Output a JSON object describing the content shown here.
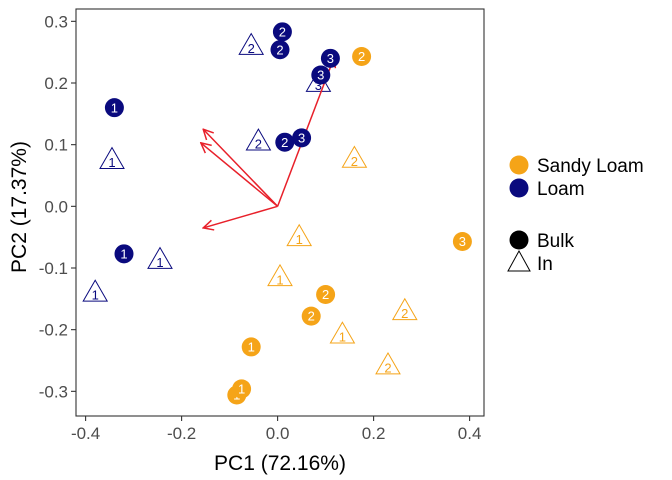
{
  "chart_data": {
    "type": "scatter",
    "xlabel": "PC1 (72.16%)",
    "ylabel": "PC2 (17.37%)",
    "xlim": [
      -0.42,
      0.43
    ],
    "ylim": [
      -0.34,
      0.32
    ],
    "x_ticks": [
      -0.4,
      -0.2,
      0.0,
      0.2,
      0.4
    ],
    "x_tick_labels": [
      "-0.4",
      "-0.2",
      "0.0",
      "0.2",
      "0.4"
    ],
    "y_ticks": [
      -0.3,
      -0.2,
      -0.1,
      0.0,
      0.1,
      0.2,
      0.3
    ],
    "y_tick_labels": [
      "-0.3",
      "-0.2",
      "-0.1",
      "0.0",
      "0.1",
      "0.2",
      "0.3"
    ],
    "grid": false,
    "colors": {
      "Sandy Loam": "#F5A418",
      "Loam": "#0A0A7E",
      "arrows": "#E8202A"
    },
    "legend": {
      "placement": "right",
      "color_entries": [
        {
          "label": "Sandy Loam",
          "color": "#F5A418"
        },
        {
          "label": "Loam",
          "color": "#0A0A7E"
        }
      ],
      "shape_entries": [
        {
          "label": "Bulk",
          "shape": "circle"
        },
        {
          "label": "In",
          "shape": "triangle"
        }
      ]
    },
    "points": [
      {
        "x": -0.34,
        "y": 0.16,
        "soil": "Loam",
        "type": "Bulk",
        "label": "1"
      },
      {
        "x": -0.32,
        "y": -0.077,
        "soil": "Loam",
        "type": "Bulk",
        "label": "1"
      },
      {
        "x": 0.01,
        "y": 0.283,
        "soil": "Loam",
        "type": "Bulk",
        "label": "2"
      },
      {
        "x": 0.005,
        "y": 0.254,
        "soil": "Loam",
        "type": "Bulk",
        "label": "2"
      },
      {
        "x": 0.015,
        "y": 0.104,
        "soil": "Loam",
        "type": "Bulk",
        "label": "2"
      },
      {
        "x": 0.11,
        "y": 0.24,
        "soil": "Loam",
        "type": "Bulk",
        "label": "3"
      },
      {
        "x": 0.09,
        "y": 0.213,
        "soil": "Loam",
        "type": "Bulk",
        "label": "3"
      },
      {
        "x": 0.05,
        "y": 0.111,
        "soil": "Loam",
        "type": "Bulk",
        "label": "3"
      },
      {
        "x": -0.345,
        "y": 0.075,
        "soil": "Loam",
        "type": "In",
        "label": "1"
      },
      {
        "x": -0.245,
        "y": -0.087,
        "soil": "Loam",
        "type": "In",
        "label": "1"
      },
      {
        "x": -0.38,
        "y": -0.14,
        "soil": "Loam",
        "type": "In",
        "label": "1"
      },
      {
        "x": -0.055,
        "y": 0.26,
        "soil": "Loam",
        "type": "In",
        "label": "2"
      },
      {
        "x": -0.04,
        "y": 0.105,
        "soil": "Loam",
        "type": "In",
        "label": "2"
      },
      {
        "x": 0.085,
        "y": 0.2,
        "soil": "Loam",
        "type": "In",
        "label": "3"
      },
      {
        "x": -0.085,
        "y": -0.306,
        "soil": "Sandy Loam",
        "type": "Bulk",
        "label": "1"
      },
      {
        "x": -0.075,
        "y": -0.296,
        "soil": "Sandy Loam",
        "type": "Bulk",
        "label": "1"
      },
      {
        "x": -0.055,
        "y": -0.228,
        "soil": "Sandy Loam",
        "type": "Bulk",
        "label": "1"
      },
      {
        "x": 0.1,
        "y": -0.143,
        "soil": "Sandy Loam",
        "type": "Bulk",
        "label": "2"
      },
      {
        "x": 0.07,
        "y": -0.178,
        "soil": "Sandy Loam",
        "type": "Bulk",
        "label": "2"
      },
      {
        "x": 0.175,
        "y": 0.243,
        "soil": "Sandy Loam",
        "type": "Bulk",
        "label": "2"
      },
      {
        "x": 0.385,
        "y": -0.057,
        "soil": "Sandy Loam",
        "type": "Bulk",
        "label": "3"
      },
      {
        "x": 0.045,
        "y": -0.05,
        "soil": "Sandy Loam",
        "type": "In",
        "label": "1"
      },
      {
        "x": 0.005,
        "y": -0.115,
        "soil": "Sandy Loam",
        "type": "In",
        "label": "1"
      },
      {
        "x": 0.135,
        "y": -0.208,
        "soil": "Sandy Loam",
        "type": "In",
        "label": "1"
      },
      {
        "x": 0.16,
        "y": 0.077,
        "soil": "Sandy Loam",
        "type": "In",
        "label": "2"
      },
      {
        "x": 0.265,
        "y": -0.17,
        "soil": "Sandy Loam",
        "type": "In",
        "label": "2"
      },
      {
        "x": 0.23,
        "y": -0.258,
        "soil": "Sandy Loam",
        "type": "In",
        "label": "2"
      }
    ],
    "arrows": [
      {
        "x0": 0.0,
        "y0": 0.0,
        "x1": -0.155,
        "y1": 0.125
      },
      {
        "x0": 0.0,
        "y0": 0.0,
        "x1": -0.16,
        "y1": 0.103
      },
      {
        "x0": 0.0,
        "y0": 0.0,
        "x1": -0.155,
        "y1": -0.035
      },
      {
        "x0": 0.0,
        "y0": 0.0,
        "x1": 0.118,
        "y1": 0.242
      }
    ]
  }
}
